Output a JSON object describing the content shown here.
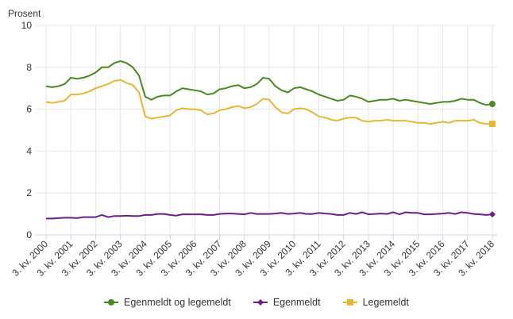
{
  "chart_data": {
    "type": "line",
    "ylabel": "Prosent",
    "ylim": [
      0,
      10
    ],
    "yticks": [
      "0",
      "2",
      "4",
      "6",
      "8",
      "10"
    ],
    "grid": true,
    "legend_position": "bottom",
    "xtick_labels": [
      "3. kv. 2000",
      "3. kv. 2001",
      "3. kv. 2002",
      "3. kv. 2003",
      "3. kv. 2004",
      "3. kv. 2005",
      "3. kv. 2006",
      "3. kv. 2007",
      "3. kv. 2008",
      "3. kv. 2009",
      "3. kv. 2010",
      "3. kv. 2011",
      "3. kv. 2012",
      "3. kv. 2013",
      "3. kv. 2014",
      "3. kv. 2015",
      "3. kv. 2016",
      "3. kv. 2017",
      "3. kv. 2018"
    ],
    "x_period": "quarterly, 3. kv. 2000 – 3. kv. 2018",
    "series": [
      {
        "name": "Egenmeldt og legemeldt",
        "color": "#4a8a1c",
        "marker": "circle",
        "values": [
          7.1,
          7.05,
          7.1,
          7.2,
          7.5,
          7.45,
          7.5,
          7.6,
          7.75,
          8.0,
          8.0,
          8.2,
          8.3,
          8.2,
          8.0,
          7.6,
          6.6,
          6.45,
          6.6,
          6.65,
          6.65,
          6.85,
          7.0,
          6.95,
          6.9,
          6.85,
          6.7,
          6.75,
          6.95,
          7.0,
          7.1,
          7.15,
          7.0,
          7.05,
          7.2,
          7.5,
          7.45,
          7.1,
          6.9,
          6.8,
          7.0,
          7.05,
          6.95,
          6.85,
          6.7,
          6.6,
          6.5,
          6.4,
          6.45,
          6.65,
          6.6,
          6.5,
          6.35,
          6.4,
          6.45,
          6.45,
          6.5,
          6.4,
          6.45,
          6.4,
          6.35,
          6.3,
          6.25,
          6.3,
          6.35,
          6.35,
          6.4,
          6.5,
          6.45,
          6.45,
          6.3,
          6.2,
          6.25
        ]
      },
      {
        "name": "Egenmeldt",
        "color": "#6b1f8a",
        "marker": "diamond",
        "values": [
          0.78,
          0.78,
          0.8,
          0.82,
          0.82,
          0.8,
          0.85,
          0.85,
          0.85,
          0.95,
          0.85,
          0.9,
          0.9,
          0.92,
          0.9,
          0.9,
          0.95,
          0.95,
          1.0,
          1.0,
          0.95,
          0.92,
          0.98,
          0.98,
          0.98,
          0.98,
          0.95,
          0.95,
          1.0,
          1.02,
          1.02,
          1.0,
          0.98,
          1.05,
          1.0,
          1.0,
          1.0,
          1.02,
          1.05,
          1.0,
          1.02,
          1.05,
          1.0,
          1.0,
          1.05,
          1.02,
          1.0,
          0.95,
          0.95,
          1.05,
          1.0,
          1.08,
          0.98,
          1.0,
          1.02,
          1.0,
          1.08,
          0.98,
          1.08,
          1.05,
          1.05,
          0.98,
          0.98,
          1.0,
          1.02,
          1.05,
          1.0,
          1.08,
          1.05,
          1.0,
          0.98,
          0.95,
          0.98
        ]
      },
      {
        "name": "Legemeldt",
        "color": "#e8b631",
        "marker": "square",
        "values": [
          6.35,
          6.3,
          6.35,
          6.4,
          6.7,
          6.7,
          6.75,
          6.85,
          7.0,
          7.1,
          7.2,
          7.35,
          7.4,
          7.25,
          7.15,
          6.8,
          5.65,
          5.55,
          5.6,
          5.65,
          5.7,
          5.95,
          6.05,
          6.0,
          6.0,
          5.95,
          5.75,
          5.8,
          5.95,
          6.0,
          6.1,
          6.15,
          6.05,
          6.1,
          6.25,
          6.5,
          6.45,
          6.1,
          5.85,
          5.8,
          6.0,
          6.05,
          6.0,
          5.85,
          5.65,
          5.6,
          5.5,
          5.45,
          5.55,
          5.6,
          5.6,
          5.45,
          5.4,
          5.45,
          5.45,
          5.5,
          5.45,
          5.45,
          5.45,
          5.4,
          5.35,
          5.35,
          5.3,
          5.35,
          5.4,
          5.35,
          5.45,
          5.45,
          5.45,
          5.5,
          5.35,
          5.3,
          5.3
        ]
      }
    ]
  }
}
